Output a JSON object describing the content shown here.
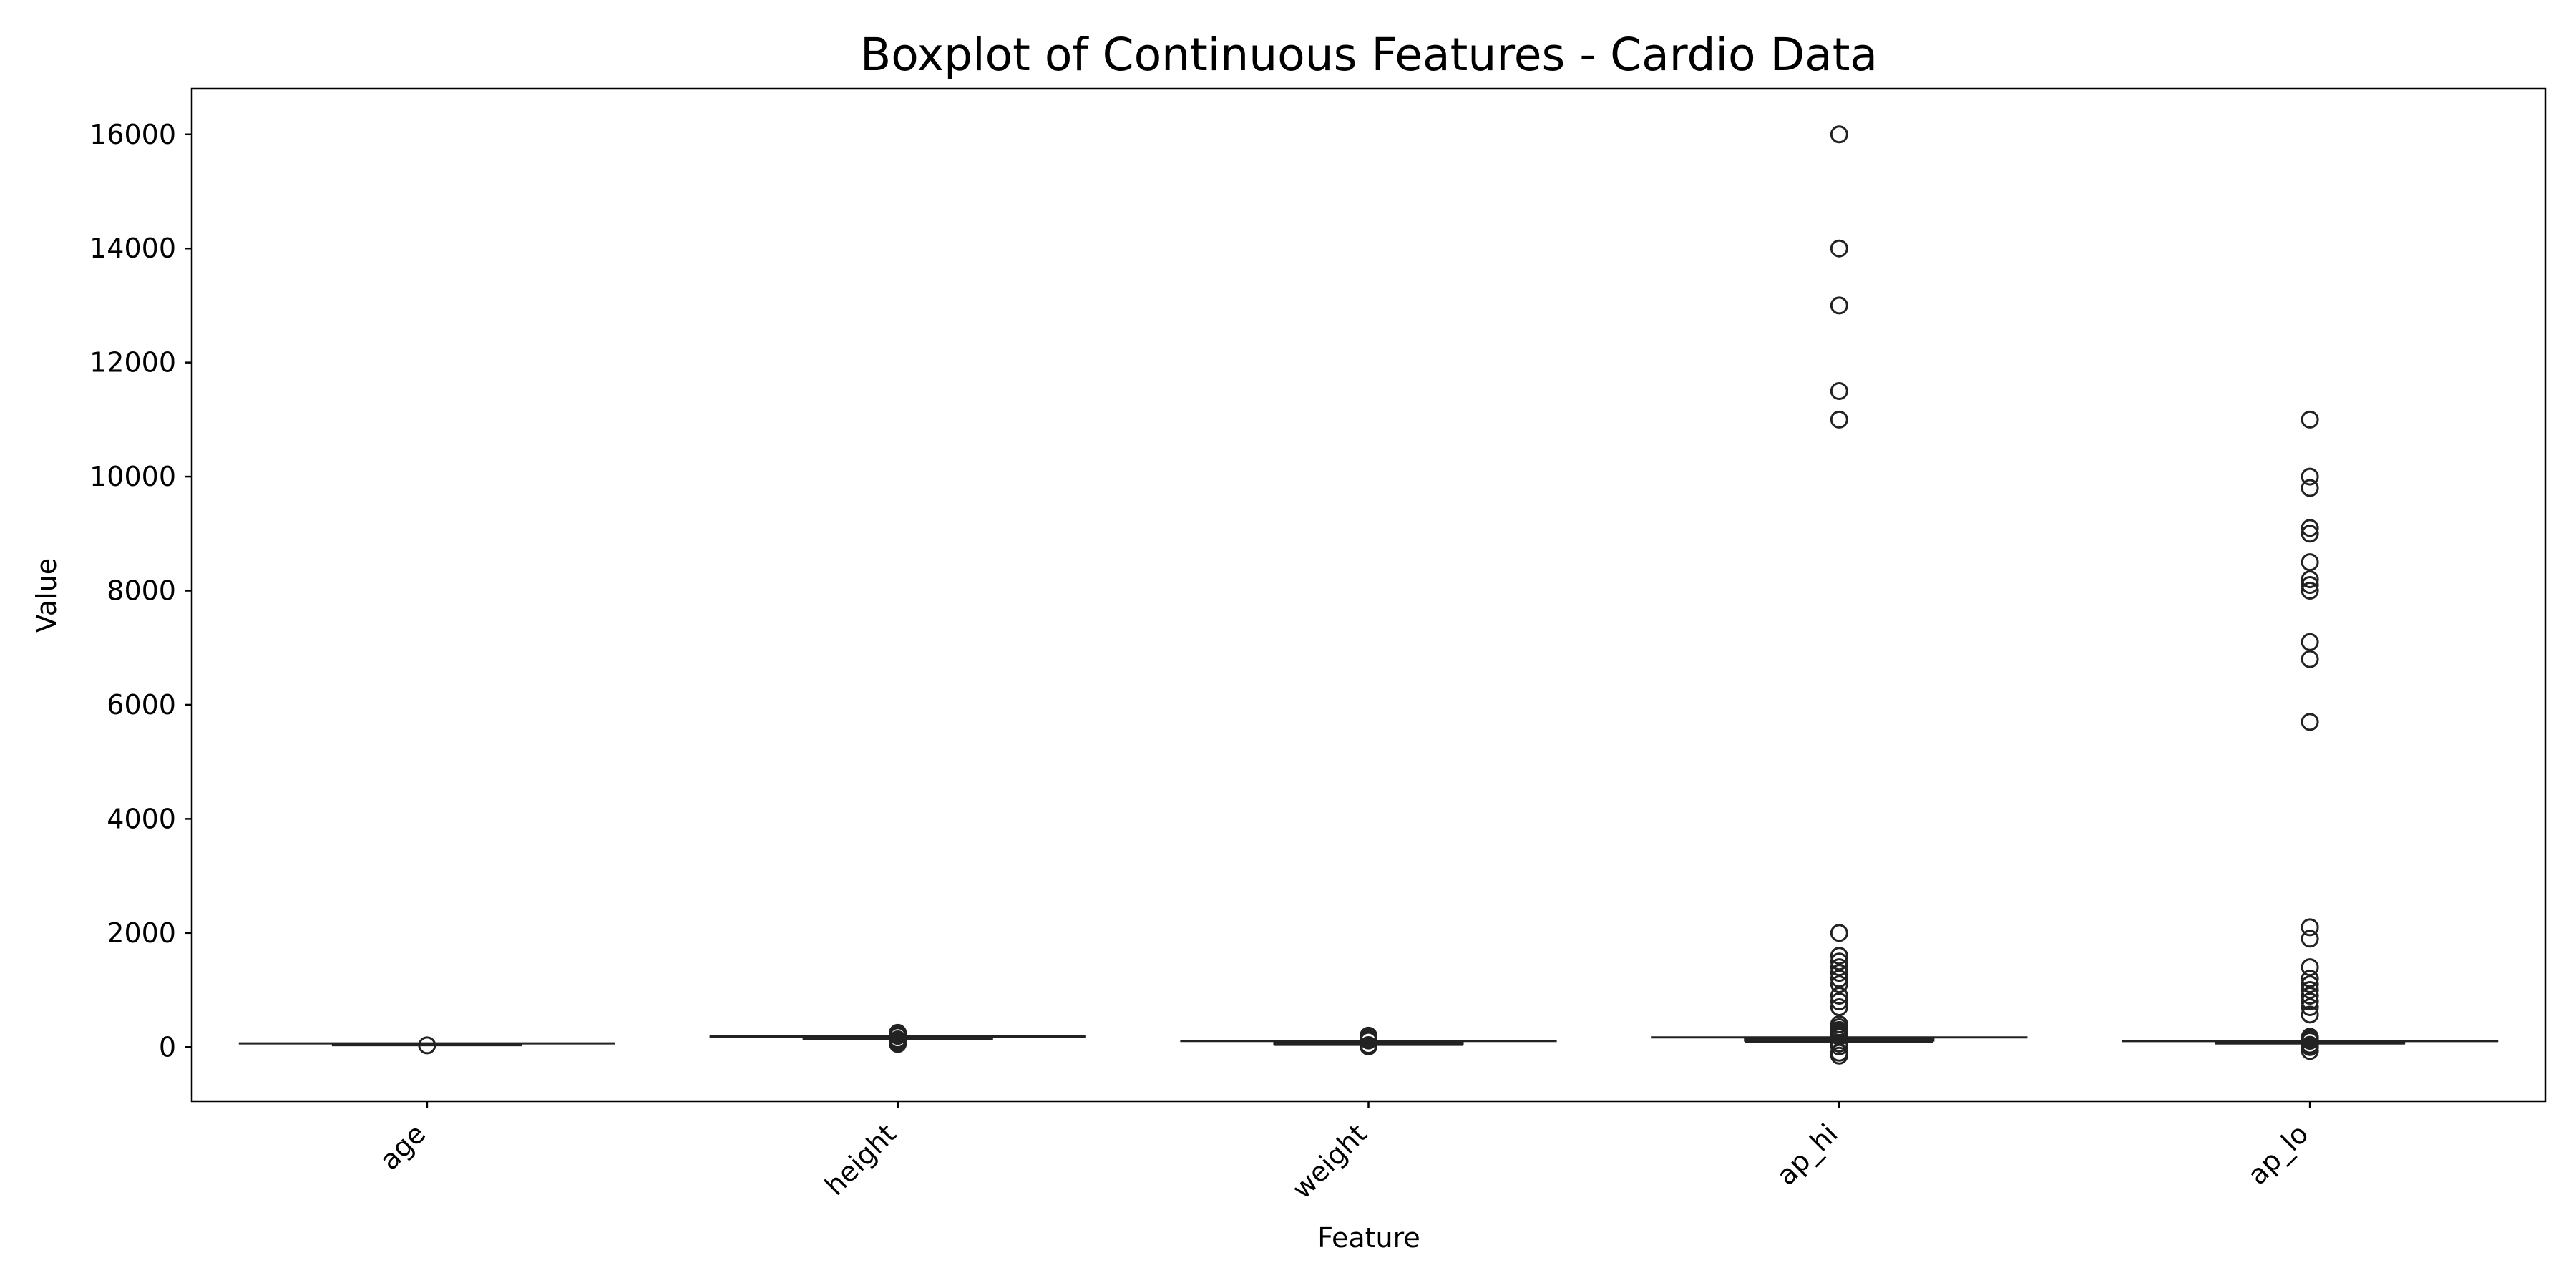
{
  "chart_data": {
    "type": "box",
    "title": "Boxplot of Continuous Features - Cardio Data",
    "xlabel": "Feature",
    "ylabel": "Value",
    "ylim": [
      -950,
      16800
    ],
    "yticks": [
      0,
      2000,
      4000,
      6000,
      8000,
      10000,
      12000,
      14000,
      16000
    ],
    "grid": false,
    "categories": [
      "age",
      "height",
      "weight",
      "ap_hi",
      "ap_lo"
    ],
    "boxes": [
      {
        "name": "age",
        "whisker_low": 39,
        "q1": 48,
        "median": 54,
        "q3": 58,
        "whisker_high": 65,
        "outliers": [
          30
        ]
      },
      {
        "name": "height",
        "whisker_low": 142,
        "q1": 159,
        "median": 165,
        "q3": 170,
        "whisker_high": 186,
        "outliers": [
          55,
          80,
          100,
          120,
          135,
          195,
          210,
          230,
          250
        ]
      },
      {
        "name": "weight",
        "whisker_low": 40,
        "q1": 65,
        "median": 72,
        "q3": 82,
        "whisker_high": 107,
        "outliers": [
          10,
          25,
          35,
          115,
          130,
          150,
          170,
          200
        ]
      },
      {
        "name": "ap_hi",
        "whisker_low": 90,
        "q1": 120,
        "median": 120,
        "q3": 140,
        "whisker_high": 170,
        "outliers": [
          -150,
          -100,
          10,
          60,
          180,
          200,
          220,
          240,
          270,
          300,
          350,
          400,
          700,
          800,
          900,
          1100,
          1200,
          1300,
          1400,
          1500,
          1600,
          2000,
          11000,
          11500,
          13000,
          14000,
          16000
        ]
      },
      {
        "name": "ap_lo",
        "whisker_low": 65,
        "q1": 80,
        "median": 80,
        "q3": 90,
        "whisker_high": 105,
        "outliers": [
          -70,
          0,
          20,
          40,
          110,
          120,
          150,
          180,
          570,
          700,
          800,
          900,
          1000,
          1100,
          1200,
          1400,
          1900,
          2100,
          5700,
          6800,
          7100,
          8000,
          8100,
          8200,
          8500,
          9000,
          9100,
          9800,
          10000,
          11000
        ]
      }
    ]
  }
}
